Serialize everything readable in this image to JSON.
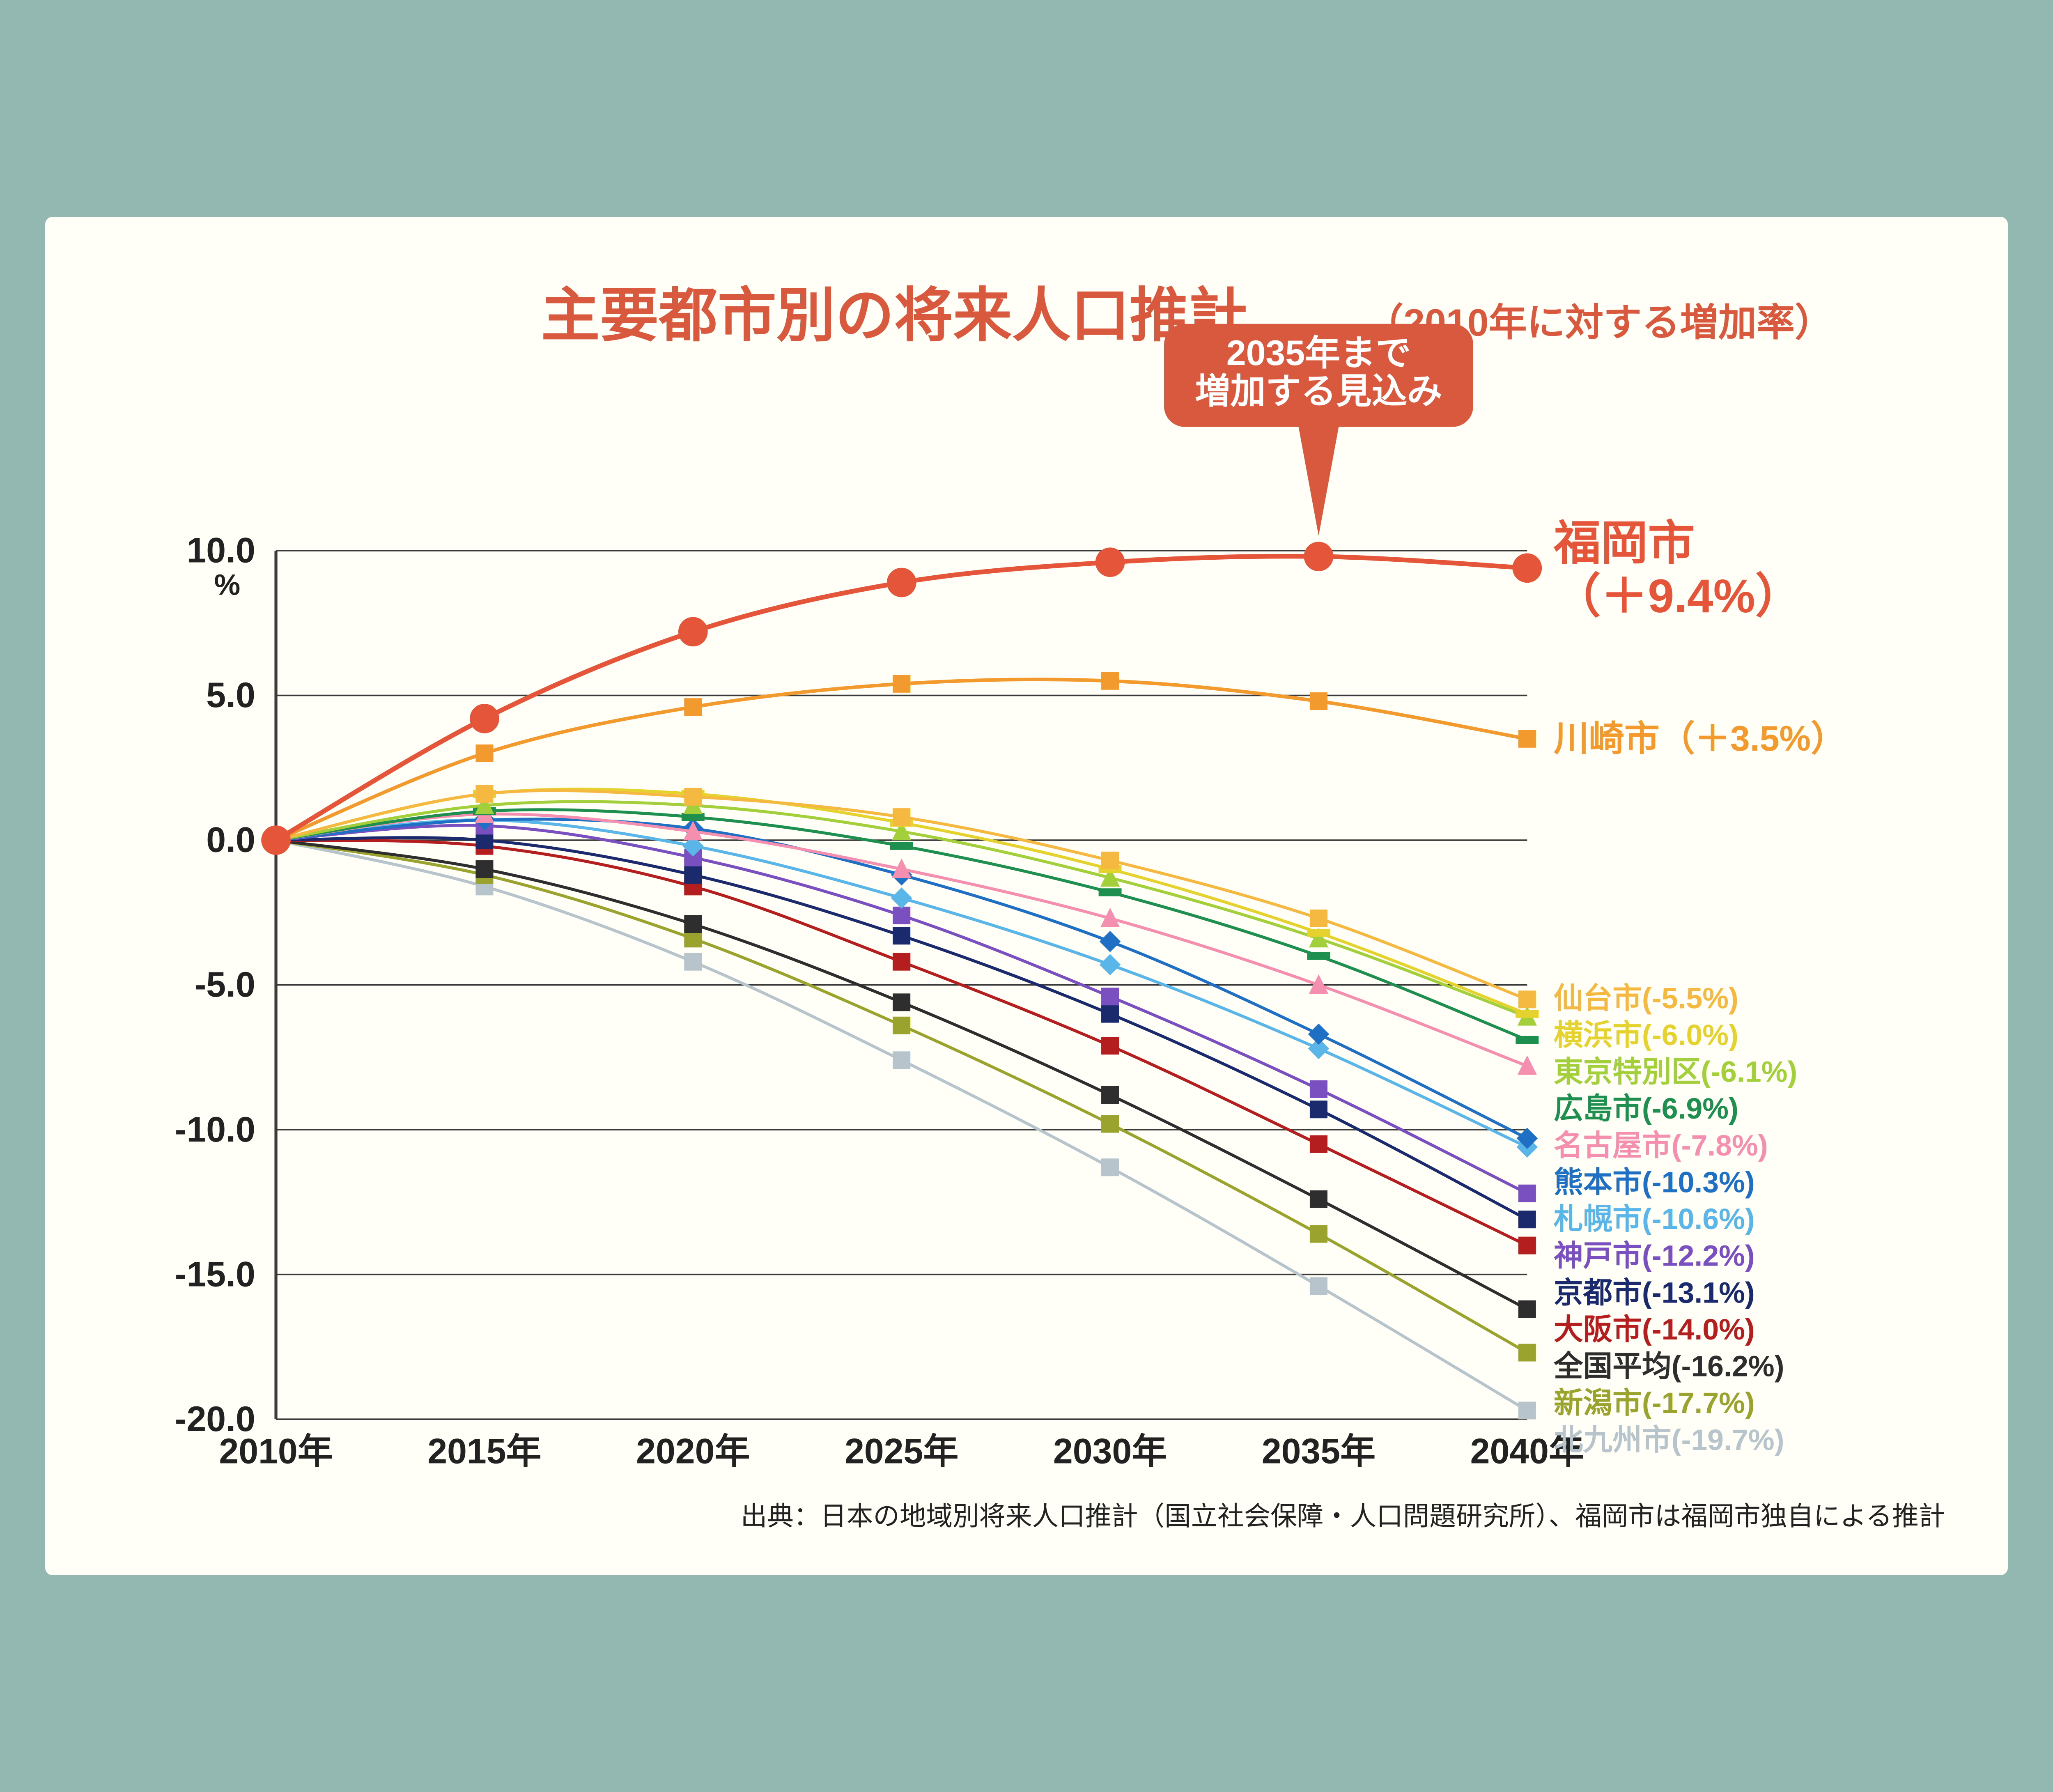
{
  "page_bg": "#93b7b1",
  "panel_bg": "#fffef7",
  "title": {
    "main": "主要都市別の将来人口推計",
    "sub": "（2010年に対する増加率）",
    "color": "#d9593f",
    "main_fontsize": 40,
    "sub_fontsize": 26
  },
  "callout": {
    "line1": "2035年まで",
    "line2": "増加する見込み",
    "bg": "#d9593f",
    "text_color": "#ffffff",
    "fontsize": 24
  },
  "chart": {
    "x_categories": [
      "2010年",
      "2015年",
      "2020年",
      "2025年",
      "2030年",
      "2035年",
      "2040年"
    ],
    "y_ticks": [
      10.0,
      5.0,
      0.0,
      -5.0,
      -10.0,
      -15.0,
      -20.0
    ],
    "y_unit": "%",
    "ylim": [
      -20,
      10
    ],
    "grid_color": "#3a3a3a",
    "axis_color": "#3a3a3a",
    "tick_fontsize": 24,
    "series": [
      {
        "id": "fukuoka",
        "name": "福岡市",
        "label": "福岡市",
        "label2": "（＋9.4%）",
        "color": "#e4553a",
        "marker": "circle",
        "marker_r": 10,
        "line_w": 3.2,
        "emph": true,
        "label_fontsize": 32,
        "yvals": [
          0,
          4.2,
          7.2,
          8.9,
          9.6,
          9.8,
          9.4
        ]
      },
      {
        "id": "kawasaki",
        "name": "川崎市",
        "label": "川崎市（＋3.5%）",
        "color": "#f29a2e",
        "marker": "square",
        "line_w": 2.4,
        "label_fontsize": 24,
        "yvals": [
          0,
          3.0,
          4.6,
          5.4,
          5.5,
          4.8,
          3.5
        ]
      },
      {
        "id": "sendai",
        "name": "仙台市",
        "label": "仙台市(-5.5%)",
        "color": "#f5b942",
        "marker": "square",
        "line_w": 2.0,
        "label_fontsize": 20,
        "yvals": [
          0,
          1.6,
          1.5,
          0.8,
          -0.7,
          -2.7,
          -5.5
        ]
      },
      {
        "id": "yokohama",
        "name": "横浜市",
        "label": "横浜市(-6.0%)",
        "color": "#e6d22e",
        "marker": "dash",
        "line_w": 2.0,
        "label_fontsize": 20,
        "yvals": [
          0,
          1.6,
          1.6,
          0.6,
          -1.0,
          -3.2,
          -6.0
        ]
      },
      {
        "id": "tokyo",
        "name": "東京特別区",
        "label": "東京特別区(-6.1%)",
        "color": "#a2cf3a",
        "marker": "triangle",
        "line_w": 2.0,
        "label_fontsize": 20,
        "yvals": [
          0,
          1.2,
          1.2,
          0.3,
          -1.3,
          -3.4,
          -6.1
        ]
      },
      {
        "id": "hiroshima",
        "name": "広島市",
        "label": "広島市(-6.9%)",
        "color": "#1e8f4e",
        "marker": "dash",
        "line_w": 2.0,
        "label_fontsize": 20,
        "yvals": [
          0,
          1.0,
          0.8,
          -0.2,
          -1.8,
          -4.0,
          -6.9
        ]
      },
      {
        "id": "nagoya",
        "name": "名古屋市",
        "label": "名古屋市(-7.8%)",
        "color": "#f58fb0",
        "marker": "triangle",
        "line_w": 2.0,
        "label_fontsize": 20,
        "yvals": [
          0,
          0.9,
          0.3,
          -1.0,
          -2.7,
          -5.0,
          -7.8
        ]
      },
      {
        "id": "kumamoto",
        "name": "熊本市",
        "label": "熊本市(-10.3%)",
        "color": "#1f6fc4",
        "marker": "diamond",
        "line_w": 2.0,
        "label_fontsize": 20,
        "yvals": [
          0,
          0.7,
          0.4,
          -1.2,
          -3.5,
          -6.7,
          -10.3
        ]
      },
      {
        "id": "sapporo",
        "name": "札幌市",
        "label": "札幌市(-10.6%)",
        "color": "#5ab5e8",
        "marker": "diamond",
        "line_w": 2.0,
        "label_fontsize": 20,
        "yvals": [
          0,
          0.7,
          -0.2,
          -2.0,
          -4.3,
          -7.2,
          -10.6
        ]
      },
      {
        "id": "kobe",
        "name": "神戸市",
        "label": "神戸市(-12.2%)",
        "color": "#7a4fc0",
        "marker": "square",
        "line_w": 2.0,
        "label_fontsize": 20,
        "yvals": [
          0,
          0.5,
          -0.6,
          -2.6,
          -5.4,
          -8.6,
          -12.2
        ]
      },
      {
        "id": "kyoto",
        "name": "京都市",
        "label": "京都市(-13.1%)",
        "color": "#1a2a6c",
        "marker": "square",
        "line_w": 2.0,
        "label_fontsize": 20,
        "yvals": [
          0,
          0.0,
          -1.2,
          -3.3,
          -6.0,
          -9.3,
          -13.1
        ]
      },
      {
        "id": "osaka",
        "name": "大阪市",
        "label": "大阪市(-14.0%)",
        "color": "#b51e1e",
        "marker": "square",
        "line_w": 2.0,
        "label_fontsize": 20,
        "yvals": [
          0,
          -0.2,
          -1.6,
          -4.2,
          -7.1,
          -10.5,
          -14.0
        ]
      },
      {
        "id": "zenkoku",
        "name": "全国平均",
        "label": "全国平均(-16.2%)",
        "color": "#2e2e2e",
        "marker": "square",
        "line_w": 2.0,
        "label_fontsize": 20,
        "yvals": [
          0,
          -1.0,
          -2.9,
          -5.6,
          -8.8,
          -12.4,
          -16.2
        ]
      },
      {
        "id": "niigata",
        "name": "新潟市",
        "label": "新潟市(-17.7%)",
        "color": "#9aa32e",
        "marker": "square",
        "line_w": 2.0,
        "label_fontsize": 20,
        "yvals": [
          0,
          -1.2,
          -3.4,
          -6.4,
          -9.8,
          -13.6,
          -17.7
        ]
      },
      {
        "id": "kitakyushu",
        "name": "北九州市",
        "label": "北九州市(-19.7%)",
        "color": "#b7c4cc",
        "marker": "square",
        "line_w": 2.0,
        "label_fontsize": 20,
        "yvals": [
          0,
          -1.6,
          -4.2,
          -7.6,
          -11.3,
          -15.4,
          -19.7
        ]
      }
    ]
  },
  "source": "出典：日本の地域別将来人口推計（国立社会保障・人口問題研究所）、福岡市は福岡市独自による推計",
  "source_fontsize": 18
}
